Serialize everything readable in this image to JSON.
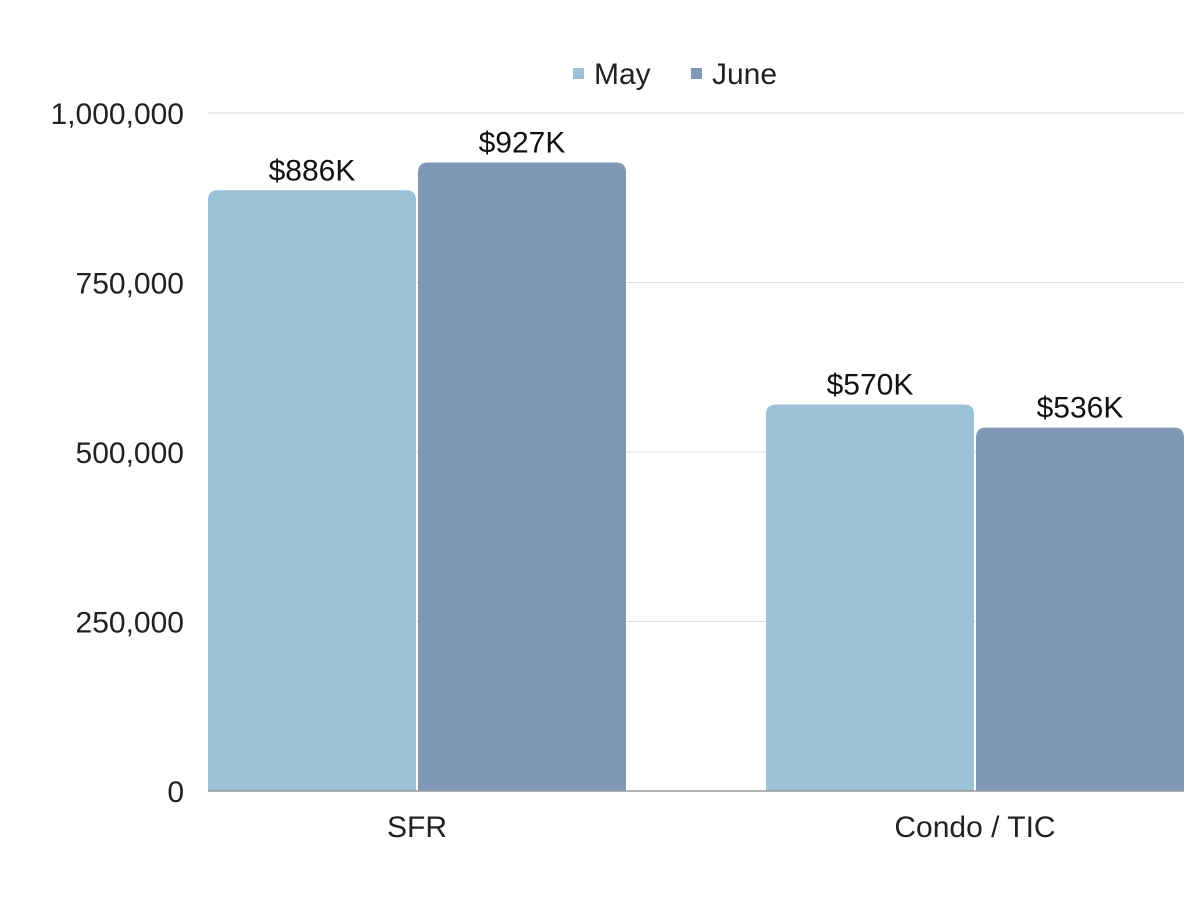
{
  "chart_data": {
    "type": "bar",
    "title": "",
    "xlabel": "",
    "ylabel": "",
    "categories": [
      "SFR",
      "Condo / TIC"
    ],
    "series": [
      {
        "name": "May",
        "color": "#9BC2D7",
        "values": [
          886000,
          570000
        ],
        "labels": [
          "$886K",
          "$570K"
        ]
      },
      {
        "name": "June",
        "color": "#7F98B5",
        "values": [
          927000,
          536000
        ],
        "labels": [
          "$927K",
          "$536K"
        ]
      }
    ],
    "ylim": [
      0,
      1000000
    ],
    "yticks": [
      0,
      250000,
      500000,
      750000,
      1000000
    ],
    "ytick_labels": [
      "0",
      "250,000",
      "500,000",
      "750,000",
      "1,000,000"
    ],
    "grid": true,
    "legend_position": "top-center"
  }
}
